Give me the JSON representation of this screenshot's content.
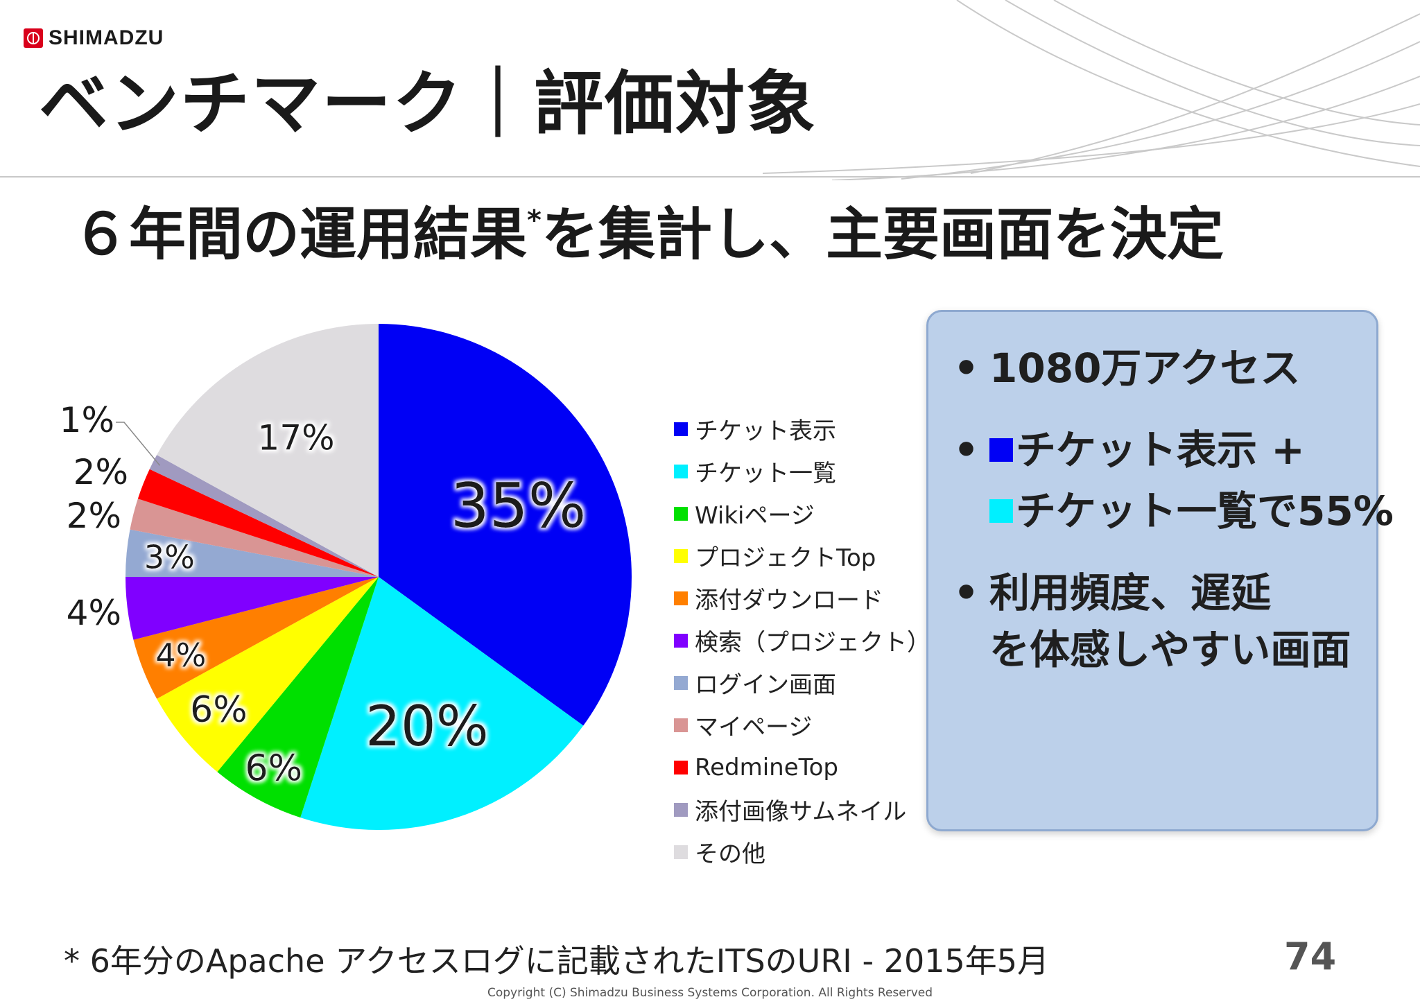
{
  "header": {
    "logo_text": "SHIMADZU",
    "title": "ベンチマーク｜評価対象"
  },
  "subtitle": {
    "main": "６年間の運用結果",
    "mark": "*",
    "rest": "を集計し、主要画面を決定"
  },
  "chart_data": {
    "type": "pie",
    "categories": [
      "チケット表示",
      "チケット一覧",
      "Wikiページ",
      "プロジェクトTop",
      "添付ダウンロード",
      "検索（プロジェクト）",
      "ログイン画面",
      "マイページ",
      "RedmineTop",
      "添付画像サムネイル",
      "その他"
    ],
    "values": [
      35,
      20,
      6,
      6,
      4,
      4,
      3,
      2,
      2,
      1,
      17
    ],
    "value_labels": [
      "35%",
      "20%",
      "6%",
      "6%",
      "4%",
      "4%",
      "3%",
      "2%",
      "2%",
      "1%",
      "17%"
    ],
    "colors": [
      "#0000f5",
      "#00f0ff",
      "#00e000",
      "#ffff00",
      "#ff7f00",
      "#8000ff",
      "#94a9d2",
      "#d99594",
      "#ff0000",
      "#a09ac0",
      "#dedcdf"
    ],
    "start_angle_deg": 0,
    "direction": "clockwise",
    "legend_position": "right"
  },
  "info": {
    "item1": "1080万アクセス",
    "item2_line1": "チケット表示 +",
    "item2_line2": "チケット一覧で55%",
    "item3_line1": "利用頻度、遅延",
    "item3_line2": "を体感しやすい画面",
    "bullet": "•",
    "square1_color": "#0000f5",
    "square2_color": "#00f0ff"
  },
  "footer": {
    "footnote": "* 6年分のApache アクセスログに記載されたITSのURI - 2015年5月",
    "page_number": "74",
    "copyright": "Copyright (C) Shimadzu Business Systems Corporation. All Rights Reserved"
  }
}
